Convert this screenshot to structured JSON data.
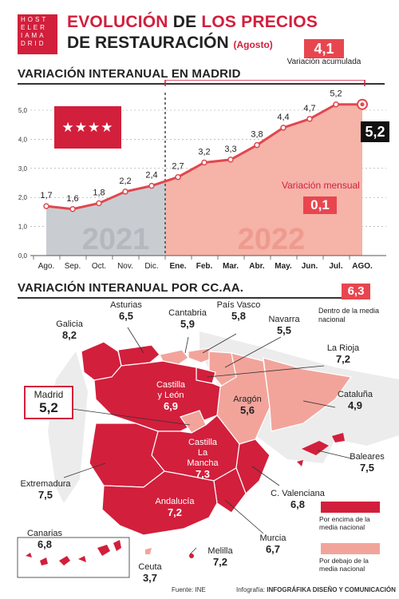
{
  "header": {
    "logo_lines": [
      "HOST",
      "ELER",
      "IAMA",
      "DRID"
    ],
    "title_part1": "EVOLUCIÓN",
    "title_part2": "DE",
    "title_part3": "LOS PRECIOS",
    "title_line2": "DE RESTAURACIÓN",
    "title_note": "(Agosto)"
  },
  "section1": {
    "title": "VARIACIÓN INTERANUAL EN MADRID",
    "accumulated_value": "4,1",
    "accumulated_label": "Variación acumulada",
    "monthly_label": "Variación mensual",
    "monthly_value": "0,1",
    "current_value": "5,2",
    "year_left": "2021",
    "year_right": "2022"
  },
  "chart_data": {
    "type": "line",
    "categories": [
      "Ago.",
      "Sep.",
      "Oct.",
      "Nov.",
      "Dic.",
      "Ene.",
      "Feb.",
      "Mar.",
      "Abr.",
      "May.",
      "Jun.",
      "Jul.",
      "AGO."
    ],
    "values": [
      1.7,
      1.6,
      1.8,
      2.2,
      2.4,
      2.7,
      3.2,
      3.3,
      3.8,
      4.4,
      4.7,
      5.2,
      5.2
    ],
    "value_labels": [
      "1,7",
      "1,6",
      "1,8",
      "2,2",
      "2,4",
      "2,7",
      "3,2",
      "3,3",
      "3,8",
      "4,4",
      "4,7",
      "5,2",
      ""
    ],
    "ylim": [
      0,
      5
    ],
    "yticks": [
      "0,0",
      "1,0",
      "2,0",
      "3,0",
      "4,0",
      "5,0"
    ],
    "grid": true
  },
  "section2": {
    "title": "VARIACIÓN INTERANUAL POR CC.AA.",
    "national_value": "6,3",
    "national_label": "Dentro de la media nacional",
    "legend_above": "Por encima de la media nacional",
    "legend_below": "Por debajo de la media nacional",
    "colors": {
      "above": "#d21f3c",
      "below": "#f2a49b",
      "neutral": "#e4e4e4"
    },
    "regions": {
      "galicia": {
        "name": "Galicia",
        "value": "8,2"
      },
      "asturias": {
        "name": "Asturias",
        "value": "6,5"
      },
      "cantabria": {
        "name": "Cantabria",
        "value": "5,9"
      },
      "pais_vasco": {
        "name": "País Vasco",
        "value": "5,8"
      },
      "navarra": {
        "name": "Navarra",
        "value": "5,5"
      },
      "rioja": {
        "name": "La Rioja",
        "value": "7,2"
      },
      "cataluna": {
        "name": "Cataluña",
        "value": "4,9"
      },
      "aragon": {
        "name": "Aragón",
        "value": "5,6"
      },
      "castilla_leon": {
        "name": "Castilla y León",
        "value": "6,9"
      },
      "madrid": {
        "name": "Madrid",
        "value": "5,2"
      },
      "castilla_mancha": {
        "name": "Castilla La Mancha",
        "value": "7,3"
      },
      "extremadura": {
        "name": "Extremadura",
        "value": "7,5"
      },
      "baleares": {
        "name": "Baleares",
        "value": "7,5"
      },
      "valenciana": {
        "name": "C. Valenciana",
        "value": "6,8"
      },
      "andalucia": {
        "name": "Andalucía",
        "value": "7,2"
      },
      "murcia": {
        "name": "Murcia",
        "value": "6,7"
      },
      "canarias": {
        "name": "Canarias",
        "value": "6,8"
      },
      "ceuta": {
        "name": "Ceuta",
        "value": "3,7"
      },
      "melilla": {
        "name": "Melilla",
        "value": "7,2"
      }
    }
  },
  "footer": {
    "source": "Fuente: INE",
    "credit_prefix": "Infografía:",
    "credit": "INFOGRÁFIKA DISEÑO Y COMUNICACIÓN"
  }
}
